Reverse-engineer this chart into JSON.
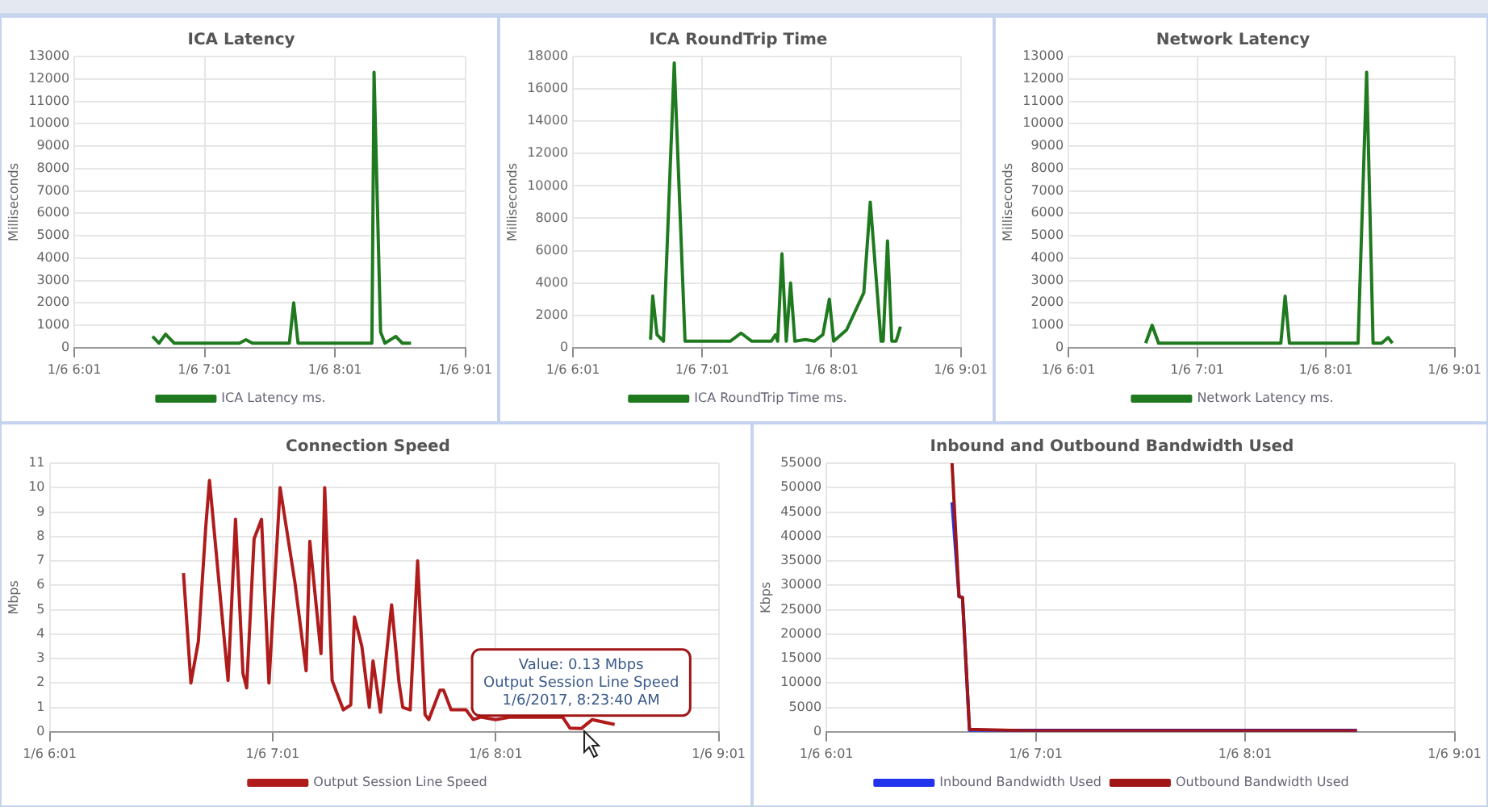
{
  "chart_data": [
    {
      "type": "line",
      "title": "ICA Latency",
      "ylabel": "Milliseconds",
      "legend": "bottom",
      "grid": true,
      "marker": "none",
      "line_style": "solid",
      "xlim": [
        "2017-01-06T06:01",
        "2017-01-06T09:01"
      ],
      "xticks": [
        {
          "value": "2017-01-06T06:01",
          "label": "1/6 6:01"
        },
        {
          "value": "2017-01-06T07:01",
          "label": "1/6 7:01"
        },
        {
          "value": "2017-01-06T08:01",
          "label": "1/6 8:01"
        },
        {
          "value": "2017-01-06T09:01",
          "label": "1/6 9:01"
        }
      ],
      "ylim": [
        0,
        13000
      ],
      "yticks": [
        0,
        1000,
        2000,
        3000,
        4000,
        5000,
        6000,
        7000,
        8000,
        9000,
        10000,
        11000,
        12000,
        13000
      ],
      "series": [
        {
          "name": "ICA Latency ms.",
          "color": "#1f7a1f",
          "x": [
            "2017-01-06T06:37",
            "2017-01-06T06:40",
            "2017-01-06T06:43",
            "2017-01-06T06:47",
            "2017-01-06T07:17",
            "2017-01-06T07:20",
            "2017-01-06T07:23",
            "2017-01-06T07:40",
            "2017-01-06T07:42",
            "2017-01-06T07:44",
            "2017-01-06T08:18",
            "2017-01-06T08:19",
            "2017-01-06T08:22",
            "2017-01-06T08:24",
            "2017-01-06T08:29",
            "2017-01-06T08:32",
            "2017-01-06T08:36"
          ],
          "values": [
            500,
            200,
            600,
            200,
            200,
            350,
            200,
            200,
            2000,
            200,
            200,
            12300,
            700,
            200,
            500,
            200,
            200
          ]
        }
      ]
    },
    {
      "type": "line",
      "title": "ICA RoundTrip Time",
      "ylabel": "Milliseconds",
      "legend": "bottom",
      "grid": true,
      "marker": "none",
      "line_style": "solid",
      "xlim": [
        "2017-01-06T06:01",
        "2017-01-06T09:01"
      ],
      "xticks": [
        {
          "value": "2017-01-06T06:01",
          "label": "1/6 6:01"
        },
        {
          "value": "2017-01-06T07:01",
          "label": "1/6 7:01"
        },
        {
          "value": "2017-01-06T08:01",
          "label": "1/6 8:01"
        },
        {
          "value": "2017-01-06T09:01",
          "label": "1/6 9:01"
        }
      ],
      "ylim": [
        0,
        18000
      ],
      "yticks": [
        0,
        2000,
        4000,
        6000,
        8000,
        10000,
        12000,
        14000,
        16000,
        18000
      ],
      "series": [
        {
          "name": "ICA RoundTrip Time ms.",
          "color": "#1f7a1f",
          "x": [
            "2017-01-06T06:37",
            "2017-01-06T06:38",
            "2017-01-06T06:40",
            "2017-01-06T06:43",
            "2017-01-06T06:48",
            "2017-01-06T06:53",
            "2017-01-06T07:14",
            "2017-01-06T07:19",
            "2017-01-06T07:24",
            "2017-01-06T07:33",
            "2017-01-06T07:35",
            "2017-01-06T07:36",
            "2017-01-06T07:38",
            "2017-01-06T07:40",
            "2017-01-06T07:42",
            "2017-01-06T07:44",
            "2017-01-06T07:49",
            "2017-01-06T07:53",
            "2017-01-06T07:57",
            "2017-01-06T08:00",
            "2017-01-06T08:02",
            "2017-01-06T08:08",
            "2017-01-06T08:16",
            "2017-01-06T08:19",
            "2017-01-06T08:24",
            "2017-01-06T08:25",
            "2017-01-06T08:27",
            "2017-01-06T08:29",
            "2017-01-06T08:31",
            "2017-01-06T08:33"
          ],
          "values": [
            500,
            3200,
            800,
            400,
            17600,
            400,
            400,
            900,
            400,
            400,
            800,
            400,
            5800,
            400,
            4000,
            400,
            500,
            400,
            800,
            3000,
            400,
            1100,
            3400,
            9000,
            400,
            400,
            6600,
            400,
            400,
            1300
          ]
        }
      ]
    },
    {
      "type": "line",
      "title": "Network Latency",
      "ylabel": "Milliseconds",
      "legend": "bottom",
      "grid": true,
      "marker": "none",
      "line_style": "solid",
      "xlim": [
        "2017-01-06T06:01",
        "2017-01-06T09:01"
      ],
      "xticks": [
        {
          "value": "2017-01-06T06:01",
          "label": "1/6 6:01"
        },
        {
          "value": "2017-01-06T07:01",
          "label": "1/6 7:01"
        },
        {
          "value": "2017-01-06T08:01",
          "label": "1/6 8:01"
        },
        {
          "value": "2017-01-06T09:01",
          "label": "1/6 9:01"
        }
      ],
      "ylim": [
        0,
        13000
      ],
      "yticks": [
        0,
        1000,
        2000,
        3000,
        4000,
        5000,
        6000,
        7000,
        8000,
        9000,
        10000,
        11000,
        12000,
        13000
      ],
      "series": [
        {
          "name": "Network Latency ms.",
          "color": "#1f7a1f",
          "x": [
            "2017-01-06T06:37",
            "2017-01-06T06:40",
            "2017-01-06T06:43",
            "2017-01-06T07:40",
            "2017-01-06T07:42",
            "2017-01-06T07:44",
            "2017-01-06T08:16",
            "2017-01-06T08:20",
            "2017-01-06T08:23",
            "2017-01-06T08:27",
            "2017-01-06T08:30",
            "2017-01-06T08:32"
          ],
          "values": [
            200,
            1000,
            200,
            200,
            2300,
            200,
            200,
            12300,
            200,
            200,
            450,
            200
          ]
        }
      ]
    },
    {
      "type": "line",
      "title": "Connection Speed",
      "ylabel": "Mbps",
      "legend": "bottom",
      "grid": true,
      "marker": "none",
      "line_style": "solid",
      "xlim": [
        "2017-01-06T06:01",
        "2017-01-06T09:01"
      ],
      "xticks": [
        {
          "value": "2017-01-06T06:01",
          "label": "1/6 6:01"
        },
        {
          "value": "2017-01-06T07:01",
          "label": "1/6 7:01"
        },
        {
          "value": "2017-01-06T08:01",
          "label": "1/6 8:01"
        },
        {
          "value": "2017-01-06T09:01",
          "label": "1/6 9:01"
        }
      ],
      "ylim": [
        0,
        11
      ],
      "yticks": [
        0,
        1,
        2,
        3,
        4,
        5,
        6,
        7,
        8,
        9,
        10,
        11
      ],
      "annotations": [
        {
          "text": "Value: 0.13 Mbps\nOutput Session Line Speed\n1/6/2017, 8:23:40 AM",
          "x": "2017-01-06T08:24",
          "y": 0.13
        }
      ],
      "series": [
        {
          "name": "Output Session Line Speed",
          "color": "#b01c1c",
          "x": [
            "2017-01-06T06:37",
            "2017-01-06T06:39",
            "2017-01-06T06:41",
            "2017-01-06T06:43",
            "2017-01-06T06:44",
            "2017-01-06T06:49",
            "2017-01-06T06:51",
            "2017-01-06T06:53",
            "2017-01-06T06:54",
            "2017-01-06T06:56",
            "2017-01-06T06:58",
            "2017-01-06T07:00",
            "2017-01-06T07:03",
            "2017-01-06T07:07",
            "2017-01-06T07:10",
            "2017-01-06T07:11",
            "2017-01-06T07:14",
            "2017-01-06T07:15",
            "2017-01-06T07:17",
            "2017-01-06T07:20",
            "2017-01-06T07:22",
            "2017-01-06T07:23",
            "2017-01-06T07:25",
            "2017-01-06T07:27",
            "2017-01-06T07:28",
            "2017-01-06T07:30",
            "2017-01-06T07:33",
            "2017-01-06T07:35",
            "2017-01-06T07:36",
            "2017-01-06T07:38",
            "2017-01-06T07:40",
            "2017-01-06T07:42",
            "2017-01-06T07:43",
            "2017-01-06T07:46",
            "2017-01-06T07:47",
            "2017-01-06T07:49",
            "2017-01-06T07:53",
            "2017-01-06T07:55",
            "2017-01-06T07:57",
            "2017-01-06T08:01",
            "2017-01-06T08:05",
            "2017-01-06T08:11",
            "2017-01-06T08:19",
            "2017-01-06T08:21",
            "2017-01-06T08:24",
            "2017-01-06T08:27",
            "2017-01-06T08:33"
          ],
          "values": [
            6.5,
            2.0,
            3.7,
            8.4,
            10.3,
            2.1,
            8.7,
            2.4,
            1.8,
            7.9,
            8.7,
            2.0,
            10.0,
            6.1,
            2.5,
            7.8,
            3.2,
            10.0,
            2.1,
            0.9,
            1.1,
            4.7,
            3.5,
            1.0,
            2.9,
            0.8,
            5.2,
            2.0,
            1.0,
            0.9,
            7.0,
            0.7,
            0.5,
            1.7,
            1.7,
            0.9,
            0.9,
            0.5,
            0.6,
            0.5,
            0.6,
            0.6,
            0.6,
            0.15,
            0.13,
            0.5,
            0.3
          ]
        }
      ]
    },
    {
      "type": "line",
      "title": "Inbound and Outbound Bandwidth Used",
      "ylabel": "Kbps",
      "legend": "bottom",
      "grid": true,
      "marker": "none",
      "line_style": "solid",
      "xlim": [
        "2017-01-06T06:01",
        "2017-01-06T09:01"
      ],
      "xticks": [
        {
          "value": "2017-01-06T06:01",
          "label": "1/6 6:01"
        },
        {
          "value": "2017-01-06T07:01",
          "label": "1/6 7:01"
        },
        {
          "value": "2017-01-06T08:01",
          "label": "1/6 8:01"
        },
        {
          "value": "2017-01-06T09:01",
          "label": "1/6 9:01"
        }
      ],
      "ylim": [
        0,
        55000
      ],
      "yticks": [
        0,
        5000,
        10000,
        15000,
        20000,
        25000,
        30000,
        35000,
        40000,
        45000,
        50000,
        55000
      ],
      "series": [
        {
          "name": "Inbound Bandwidth Used",
          "color": "#2233ee",
          "x": [
            "2017-01-06T06:37",
            "2017-01-06T06:39",
            "2017-01-06T06:40",
            "2017-01-06T06:42",
            "2017-01-06T07:00",
            "2017-01-06T08:33"
          ],
          "values": [
            47000,
            27700,
            27500,
            300,
            300,
            300
          ]
        },
        {
          "name": "Outbound Bandwidth Used",
          "color": "#a01515",
          "x": [
            "2017-01-06T06:37",
            "2017-01-06T06:39",
            "2017-01-06T06:40",
            "2017-01-06T06:42",
            "2017-01-06T07:00",
            "2017-01-06T08:33"
          ],
          "values": [
            55000,
            27700,
            27500,
            500,
            200,
            200
          ]
        }
      ]
    }
  ]
}
